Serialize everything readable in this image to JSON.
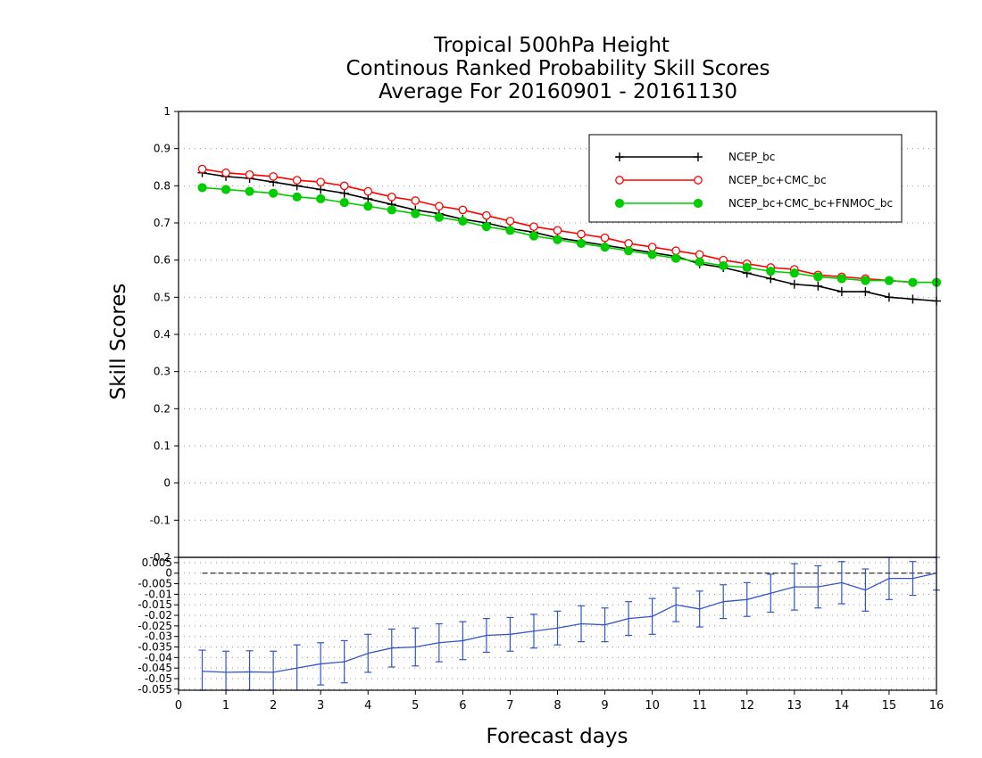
{
  "chart_data": [
    {
      "type": "line",
      "title_lines": [
        "Tropical 500hPa Height",
        "Continous Ranked Probability Skill Scores",
        "Average For 20160901 - 20161130"
      ],
      "xlabel": "Forecast days",
      "ylabel": "Skill Scores",
      "xlim": [
        0,
        16
      ],
      "ylim": [
        -0.2,
        1
      ],
      "x_ticks": [
        "0",
        "1",
        "2",
        "3",
        "4",
        "5",
        "6",
        "7",
        "8",
        "9",
        "10",
        "11",
        "12",
        "13",
        "14",
        "15",
        "16"
      ],
      "y_ticks": [
        "-0.2",
        "-0.1",
        "0",
        "0.1",
        "0.2",
        "0.3",
        "0.4",
        "0.5",
        "0.6",
        "0.7",
        "0.8",
        "0.9",
        "1"
      ],
      "grid": true,
      "legend_position": "top-right",
      "x": [
        0.5,
        1,
        1.5,
        2,
        2.5,
        3,
        3.5,
        4,
        4.5,
        5,
        5.5,
        6,
        6.5,
        7,
        7.5,
        8,
        8.5,
        9,
        9.5,
        10,
        10.5,
        11,
        11.5,
        12,
        12.5,
        13,
        13.5,
        14,
        14.5,
        15,
        15.5,
        16
      ],
      "series": [
        {
          "name": "NCEP_bc",
          "color": "#000000",
          "marker": "plus",
          "values": [
            0.835,
            0.825,
            0.82,
            0.81,
            0.8,
            0.79,
            0.78,
            0.765,
            0.75,
            0.735,
            0.725,
            0.71,
            0.7,
            0.685,
            0.675,
            0.66,
            0.65,
            0.64,
            0.63,
            0.62,
            0.61,
            0.59,
            0.58,
            0.565,
            0.55,
            0.535,
            0.53,
            0.515,
            0.515,
            0.5,
            0.495,
            0.49
          ]
        },
        {
          "name": "NCEP_bc+CMC_bc",
          "color": "#ff0000",
          "marker": "open-circle",
          "values": [
            0.845,
            0.835,
            0.83,
            0.825,
            0.815,
            0.81,
            0.8,
            0.785,
            0.77,
            0.76,
            0.745,
            0.735,
            0.72,
            0.705,
            0.69,
            0.68,
            0.67,
            0.66,
            0.645,
            0.635,
            0.625,
            0.615,
            0.6,
            0.59,
            0.58,
            0.575,
            0.56,
            0.555,
            0.55,
            0.545,
            0.54,
            0.54
          ]
        },
        {
          "name": "NCEP_bc+CMC_bc+FNMOC_bc",
          "color": "#00cc00",
          "marker": "filled-circle",
          "values": [
            0.795,
            0.79,
            0.785,
            0.78,
            0.77,
            0.765,
            0.755,
            0.745,
            0.735,
            0.725,
            0.715,
            0.705,
            0.69,
            0.68,
            0.665,
            0.655,
            0.645,
            0.635,
            0.625,
            0.615,
            0.605,
            0.595,
            0.585,
            0.58,
            0.57,
            0.565,
            0.555,
            0.55,
            0.545,
            0.545,
            0.54,
            0.54
          ]
        }
      ]
    },
    {
      "type": "line",
      "xlim": [
        0,
        16
      ],
      "ylim": [
        -0.0555,
        0.0075
      ],
      "y_ticks": [
        "0.005",
        "0",
        "-0.005",
        "-0.01",
        "-0.015",
        "-0.02",
        "-0.025",
        "-0.03",
        "-0.035",
        "-0.04",
        "-0.045",
        "-0.05",
        "-0.055"
      ],
      "reference_line": 0,
      "grid": true,
      "color": "#3355cc",
      "x": [
        0.5,
        1,
        1.5,
        2,
        2.5,
        3,
        3.5,
        4,
        4.5,
        5,
        5.5,
        6,
        6.5,
        7,
        7.5,
        8,
        8.5,
        9,
        9.5,
        10,
        10.5,
        11,
        11.5,
        12,
        12.5,
        13,
        13.5,
        14,
        14.5,
        15,
        15.5,
        16
      ],
      "values": [
        -0.0465,
        -0.047,
        -0.0468,
        -0.047,
        -0.045,
        -0.043,
        -0.042,
        -0.038,
        -0.0355,
        -0.035,
        -0.033,
        -0.032,
        -0.0295,
        -0.029,
        -0.0275,
        -0.026,
        -0.024,
        -0.0245,
        -0.0215,
        -0.0205,
        -0.015,
        -0.017,
        -0.0135,
        -0.0125,
        -0.0095,
        -0.0065,
        -0.0065,
        -0.0045,
        -0.008,
        -0.0025,
        -0.0025,
        0.0
      ],
      "error": [
        0.01,
        0.01,
        0.01,
        0.01,
        0.011,
        0.01,
        0.01,
        0.009,
        0.009,
        0.009,
        0.009,
        0.009,
        0.008,
        0.008,
        0.008,
        0.008,
        0.0085,
        0.008,
        0.008,
        0.0085,
        0.008,
        0.0085,
        0.008,
        0.008,
        0.009,
        0.011,
        0.01,
        0.01,
        0.01,
        0.01,
        0.008,
        0.008
      ]
    }
  ]
}
